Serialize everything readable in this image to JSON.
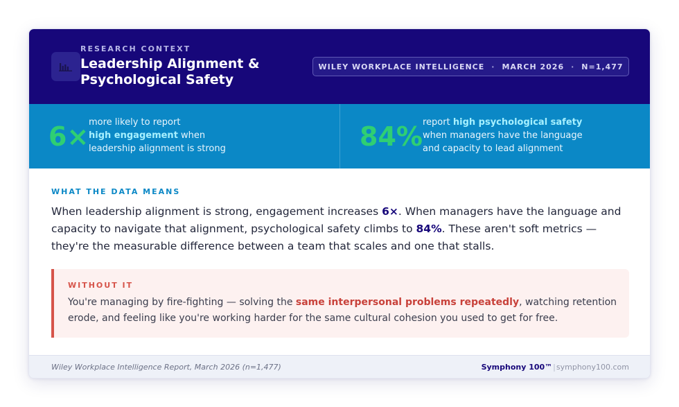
{
  "header": {
    "icon": "bar-chart-icon",
    "eyebrow": "RESEARCH CONTEXT",
    "title": "Leadership Alignment & Psychological Safety",
    "pill": {
      "source": "WILEY WORKPLACE INTELLIGENCE",
      "date": "MARCH 2026",
      "sample": "N=1,477",
      "separator": "·"
    }
  },
  "stats": [
    {
      "number": "6×",
      "pre": "more likely to report",
      "highlight": "high engagement",
      "post": "when leadership alignment is strong"
    },
    {
      "number": "84%",
      "pre": "report",
      "highlight": "high psychological safety",
      "post": "when managers have the language and capacity to lead alignment"
    }
  ],
  "data_means": {
    "label": "WHAT THE DATA MEANS",
    "p1": "When leadership alignment is strong, engagement increases ",
    "b1": "6×",
    "p2": ". When managers have the language and capacity to navigate that alignment, psychological safety climbs to ",
    "b2": "84%",
    "p3": ". These aren't soft metrics — they're the measurable difference between a team that scales and one that stalls."
  },
  "without_it": {
    "label": "WITHOUT IT",
    "p1": "You're managing by fire-fighting — solving the ",
    "b1": "same interpersonal problems repeatedly",
    "p2": ", watching retention erode, and feeling like you're working harder for the same cultural cohesion you used to get for free."
  },
  "footer": {
    "source": "Wiley Workplace Intelligence Report, March 2026 (n=1,477)",
    "brand": "Symphony 100™",
    "separator": "|",
    "url": "symphony100.com"
  },
  "colors": {
    "header_bg": "#17077a",
    "stats_bg": "#0b88c6",
    "stat_number": "#2fcf73",
    "highlight": "#a6f0ff",
    "warn_accent": "#d6544a"
  }
}
